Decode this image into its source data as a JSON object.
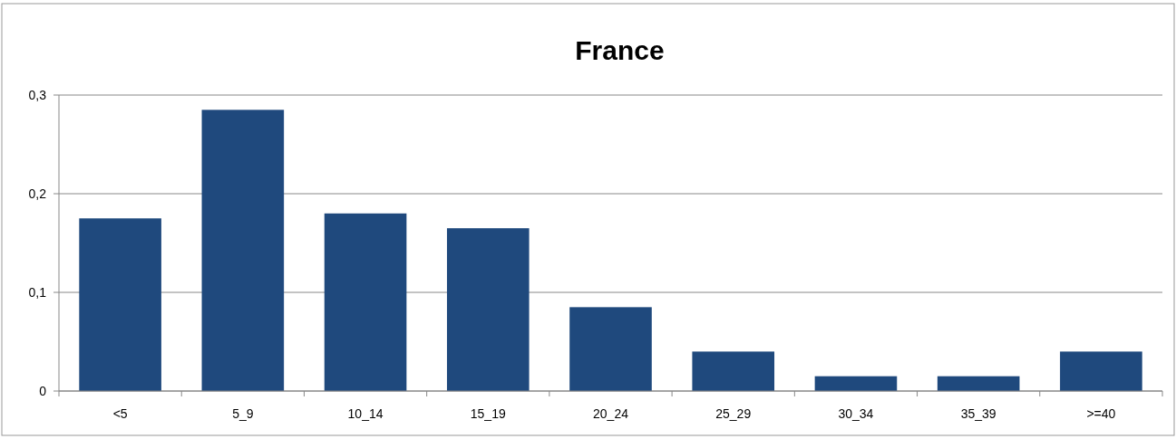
{
  "chart_data": {
    "type": "bar",
    "title": "France",
    "categories": [
      "<5",
      "5_9",
      "10_14",
      "15_19",
      "20_24",
      "25_29",
      "30_34",
      "35_39",
      ">=40"
    ],
    "values": [
      0.175,
      0.285,
      0.18,
      0.165,
      0.085,
      0.04,
      0.015,
      0.015,
      0.04
    ],
    "color": "#1f497d",
    "ylim": [
      0,
      0.3
    ],
    "yticks": [
      {
        "value": 0,
        "label": "0"
      },
      {
        "value": 0.1,
        "label": "0,1"
      },
      {
        "value": 0.2,
        "label": "0,2"
      },
      {
        "value": 0.3,
        "label": "0,3"
      }
    ],
    "grid": "y"
  }
}
